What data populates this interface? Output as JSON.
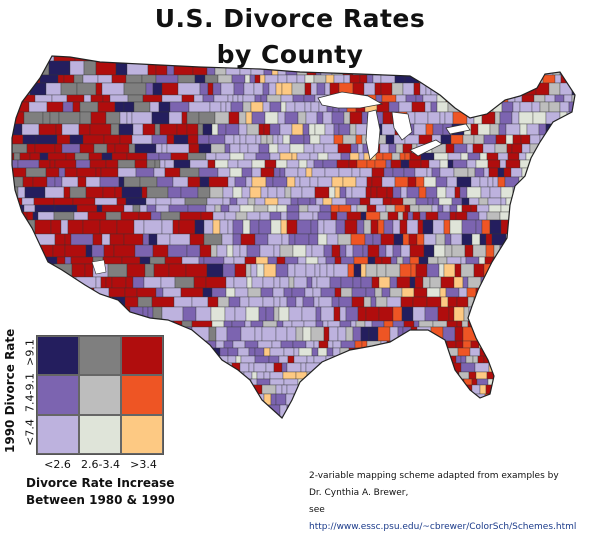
{
  "title": {
    "line1": "U.S. Divorce Rates",
    "line2": "by County"
  },
  "legend": {
    "y_title": "1990 Divorce Rate",
    "y_ticks": [
      "<7.4",
      "7.4-9.1",
      ">9.1"
    ],
    "x_title_line1": "Divorce Rate Increase",
    "x_title_line2": "Between 1980 & 1990",
    "x_ticks": [
      "<2.6",
      "2.6-3.4",
      ">3.4"
    ],
    "cells": [
      [
        "#241e5e",
        "#7f7f7f",
        "#b00d0d"
      ],
      [
        "#7c64b0",
        "#bdbdbd",
        "#ee5524"
      ],
      [
        "#bdb2de",
        "#dfe4d9",
        "#fdc983"
      ]
    ]
  },
  "credit": {
    "line1": "2-variable mapping scheme adapted from examples by",
    "line2": "Dr. Cynthia A. Brewer,",
    "line3_prefix": "see ",
    "link": "http://www.essc.psu.edu/~cbrewer/ColorSch/Schemes.html"
  },
  "map": {
    "region": "Contiguous United States, counties"
  }
}
